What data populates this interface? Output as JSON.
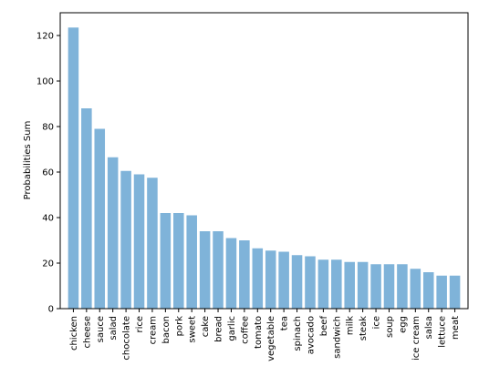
{
  "chart_data": {
    "type": "bar",
    "title": "",
    "xlabel": "",
    "ylabel": "Probabilities Sum",
    "ylim": [
      0,
      130
    ],
    "yticks": [
      0,
      20,
      40,
      60,
      80,
      100,
      120
    ],
    "grid": false,
    "legend": "none",
    "bar_color": "#7fb3d9",
    "categories": [
      "chicken",
      "cheese",
      "sauce",
      "salad",
      "chocolate",
      "rice",
      "cream",
      "bacon",
      "pork",
      "sweet",
      "cake",
      "bread",
      "garlic",
      "coffee",
      "tomato",
      "vegetable",
      "tea",
      "spinach",
      "avocado",
      "beef",
      "sandwich",
      "milk",
      "steak",
      "ice",
      "soup",
      "egg",
      "ice cream",
      "salsa",
      "lettuce",
      "meat"
    ],
    "values": [
      123.5,
      88,
      79,
      66.5,
      60.5,
      59,
      57.5,
      42,
      42,
      41,
      34,
      34,
      31,
      30,
      26.5,
      25.5,
      25,
      23.5,
      23,
      21.5,
      21.5,
      20.5,
      20.5,
      19.5,
      19.5,
      19.5,
      17.5,
      16,
      14.5,
      14.5
    ]
  }
}
